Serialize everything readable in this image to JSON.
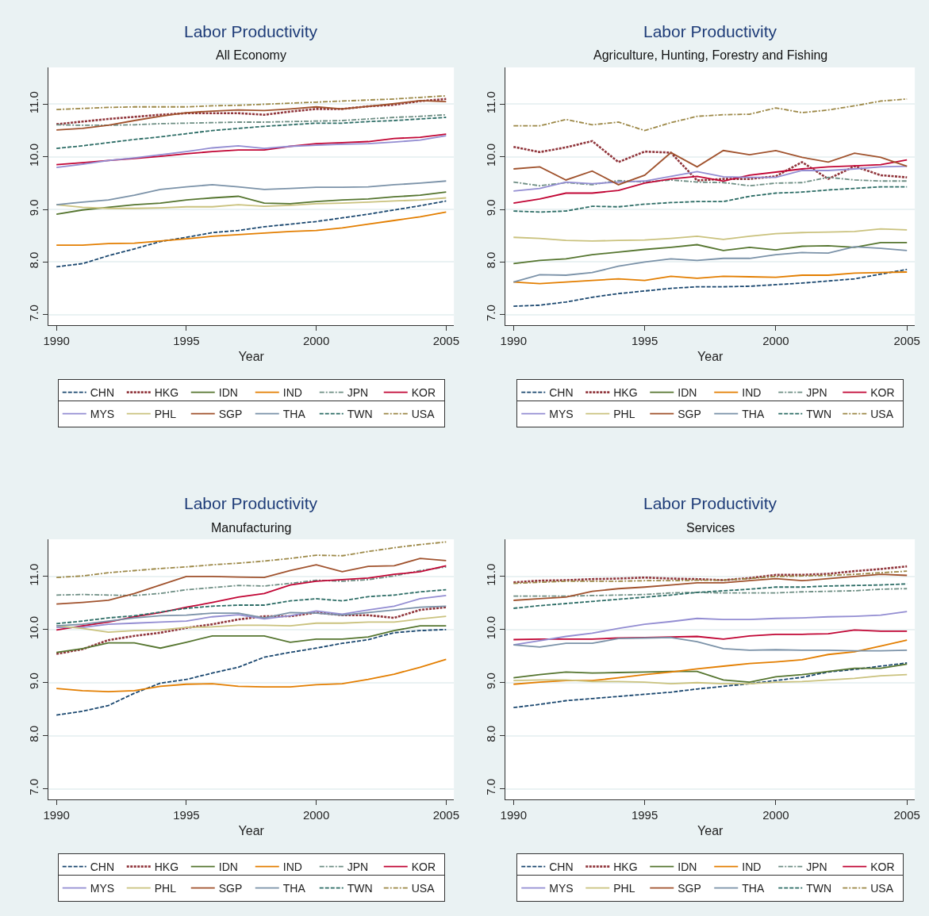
{
  "chart_data": [
    {
      "type": "line",
      "title": "Labor Productivity",
      "subtitle": "All Economy",
      "xlabel": "Year",
      "x": [
        1990,
        1991,
        1992,
        1993,
        1994,
        1995,
        1996,
        1997,
        1998,
        1999,
        2000,
        2001,
        2002,
        2003,
        2004,
        2005
      ],
      "xlim": [
        1989.7,
        2005.3
      ],
      "ylim": [
        6.8,
        11.7
      ],
      "xticks": [
        1990,
        1995,
        2000,
        2005
      ],
      "yticks": [
        {
          "value": 7,
          "label": "7.0"
        },
        {
          "value": 8,
          "label": "8.0"
        },
        {
          "value": 9,
          "label": "9.0"
        },
        {
          "value": 10,
          "label": "10.0"
        },
        {
          "value": 11,
          "label": "11.0"
        }
      ],
      "grid": "y",
      "legend": "bottom",
      "marker": "none",
      "series": [
        {
          "name": "CHN",
          "color": "#1a476f",
          "line_style": "dashed",
          "values": [
            7.91,
            7.97,
            8.12,
            8.25,
            8.39,
            8.47,
            8.56,
            8.6,
            8.67,
            8.72,
            8.77,
            8.84,
            8.91,
            8.99,
            9.07,
            9.16
          ]
        },
        {
          "name": "HKG",
          "color": "#90353b",
          "line_style": "dotted",
          "values": [
            10.62,
            10.67,
            10.72,
            10.76,
            10.8,
            10.83,
            10.83,
            10.83,
            10.8,
            10.86,
            10.91,
            10.91,
            10.96,
            10.99,
            11.06,
            11.1
          ]
        },
        {
          "name": "IDN",
          "color": "#55752f",
          "line_style": "solid",
          "values": [
            8.91,
            8.99,
            9.04,
            9.09,
            9.12,
            9.18,
            9.22,
            9.25,
            9.12,
            9.11,
            9.15,
            9.18,
            9.2,
            9.24,
            9.27,
            9.33
          ]
        },
        {
          "name": "IND",
          "color": "#e37e00",
          "line_style": "solid",
          "values": [
            8.32,
            8.32,
            8.35,
            8.36,
            8.4,
            8.44,
            8.49,
            8.52,
            8.55,
            8.58,
            8.6,
            8.65,
            8.72,
            8.79,
            8.86,
            8.95
          ]
        },
        {
          "name": "JPN",
          "color": "#6e8e84",
          "line_style": "dashdot",
          "values": [
            10.61,
            10.6,
            10.6,
            10.61,
            10.63,
            10.64,
            10.65,
            10.66,
            10.66,
            10.67,
            10.68,
            10.69,
            10.72,
            10.75,
            10.77,
            10.8
          ]
        },
        {
          "name": "KOR",
          "color": "#c10534",
          "line_style": "solid",
          "values": [
            9.85,
            9.89,
            9.93,
            9.97,
            10.01,
            10.06,
            10.1,
            10.13,
            10.13,
            10.2,
            10.25,
            10.27,
            10.29,
            10.35,
            10.37,
            10.43
          ]
        },
        {
          "name": "MYS",
          "color": "#938dd2",
          "line_style": "solid",
          "values": [
            9.8,
            9.86,
            9.93,
            9.98,
            10.04,
            10.1,
            10.17,
            10.21,
            10.16,
            10.2,
            10.22,
            10.24,
            10.25,
            10.28,
            10.32,
            10.4
          ]
        },
        {
          "name": "PHL",
          "color": "#cac27e",
          "line_style": "solid",
          "values": [
            9.09,
            9.04,
            9.02,
            9.02,
            9.03,
            9.05,
            9.05,
            9.09,
            9.06,
            9.08,
            9.11,
            9.12,
            9.14,
            9.16,
            9.18,
            9.22
          ]
        },
        {
          "name": "SGP",
          "color": "#a0522d",
          "line_style": "solid",
          "values": [
            10.51,
            10.54,
            10.6,
            10.69,
            10.77,
            10.84,
            10.87,
            10.89,
            10.88,
            10.91,
            10.95,
            10.91,
            10.96,
            11.01,
            11.07,
            11.05
          ]
        },
        {
          "name": "THA",
          "color": "#7b92a8",
          "line_style": "solid",
          "values": [
            9.09,
            9.14,
            9.18,
            9.27,
            9.38,
            9.43,
            9.47,
            9.43,
            9.38,
            9.4,
            9.42,
            9.42,
            9.43,
            9.47,
            9.5,
            9.54
          ]
        },
        {
          "name": "TWN",
          "color": "#2d6d66",
          "line_style": "dashed",
          "values": [
            10.16,
            10.21,
            10.27,
            10.33,
            10.38,
            10.44,
            10.5,
            10.54,
            10.58,
            10.61,
            10.64,
            10.64,
            10.67,
            10.69,
            10.72,
            10.75
          ]
        },
        {
          "name": "USA",
          "color": "#9c8847",
          "line_style": "dashdot",
          "values": [
            10.9,
            10.92,
            10.94,
            10.95,
            10.95,
            10.95,
            10.97,
            10.98,
            11.0,
            11.02,
            11.04,
            11.06,
            11.08,
            11.1,
            11.13,
            11.16
          ]
        }
      ]
    },
    {
      "type": "line",
      "title": "Labor Productivity",
      "subtitle": "Agriculture, Hunting, Forestry and Fishing",
      "xlabel": "Year",
      "x": [
        1990,
        1991,
        1992,
        1993,
        1994,
        1995,
        1996,
        1997,
        1998,
        1999,
        2000,
        2001,
        2002,
        2003,
        2004,
        2005
      ],
      "xlim": [
        1989.7,
        2005.3
      ],
      "ylim": [
        6.8,
        11.7
      ],
      "xticks": [
        1990,
        1995,
        2000,
        2005
      ],
      "yticks": [
        {
          "value": 7,
          "label": "7.0"
        },
        {
          "value": 8,
          "label": "8.0"
        },
        {
          "value": 9,
          "label": "9.0"
        },
        {
          "value": 10,
          "label": "10.0"
        },
        {
          "value": 11,
          "label": "11.0"
        }
      ],
      "grid": "y",
      "legend": "bottom",
      "marker": "none",
      "series": [
        {
          "name": "CHN",
          "color": "#1a476f",
          "line_style": "dashed",
          "values": [
            7.16,
            7.18,
            7.24,
            7.33,
            7.4,
            7.45,
            7.5,
            7.53,
            7.53,
            7.54,
            7.57,
            7.6,
            7.64,
            7.68,
            7.77,
            7.86
          ]
        },
        {
          "name": "HKG",
          "color": "#90353b",
          "line_style": "dotted",
          "values": [
            10.19,
            10.09,
            10.18,
            10.3,
            9.9,
            10.1,
            10.08,
            9.55,
            9.58,
            9.58,
            9.63,
            9.9,
            9.58,
            9.82,
            9.65,
            9.61
          ]
        },
        {
          "name": "IDN",
          "color": "#55752f",
          "line_style": "solid",
          "values": [
            7.97,
            8.03,
            8.06,
            8.14,
            8.19,
            8.24,
            8.28,
            8.33,
            8.22,
            8.28,
            8.23,
            8.3,
            8.31,
            8.28,
            8.37,
            8.37
          ]
        },
        {
          "name": "IND",
          "color": "#e37e00",
          "line_style": "solid",
          "values": [
            7.62,
            7.59,
            7.62,
            7.65,
            7.68,
            7.65,
            7.73,
            7.69,
            7.73,
            7.72,
            7.71,
            7.75,
            7.75,
            7.79,
            7.8,
            7.81
          ]
        },
        {
          "name": "JPN",
          "color": "#6e8e84",
          "line_style": "dashdot",
          "values": [
            9.52,
            9.45,
            9.51,
            9.47,
            9.55,
            9.52,
            9.56,
            9.52,
            9.51,
            9.45,
            9.5,
            9.51,
            9.61,
            9.56,
            9.54,
            9.54
          ]
        },
        {
          "name": "KOR",
          "color": "#c10534",
          "line_style": "solid",
          "values": [
            9.12,
            9.2,
            9.31,
            9.31,
            9.36,
            9.5,
            9.58,
            9.63,
            9.54,
            9.65,
            9.71,
            9.77,
            9.81,
            9.83,
            9.85,
            9.94
          ]
        },
        {
          "name": "MYS",
          "color": "#938dd2",
          "line_style": "solid",
          "values": [
            9.35,
            9.4,
            9.52,
            9.49,
            9.52,
            9.54,
            9.63,
            9.72,
            9.62,
            9.61,
            9.61,
            9.74,
            9.74,
            9.77,
            9.81,
            9.82
          ]
        },
        {
          "name": "PHL",
          "color": "#cac27e",
          "line_style": "solid",
          "values": [
            8.47,
            8.45,
            8.41,
            8.4,
            8.41,
            8.42,
            8.45,
            8.49,
            8.43,
            8.49,
            8.54,
            8.56,
            8.57,
            8.58,
            8.63,
            8.61
          ]
        },
        {
          "name": "SGP",
          "color": "#a0522d",
          "line_style": "solid",
          "values": [
            9.77,
            9.81,
            9.56,
            9.73,
            9.47,
            9.65,
            10.08,
            9.81,
            10.12,
            10.04,
            10.12,
            9.99,
            9.9,
            10.07,
            9.99,
            9.82
          ]
        },
        {
          "name": "THA",
          "color": "#7b92a8",
          "line_style": "solid",
          "values": [
            7.62,
            7.76,
            7.75,
            7.8,
            7.92,
            8.0,
            8.06,
            8.03,
            8.07,
            8.07,
            8.14,
            8.18,
            8.17,
            8.29,
            8.26,
            8.22
          ]
        },
        {
          "name": "TWN",
          "color": "#2d6d66",
          "line_style": "dashed",
          "values": [
            8.97,
            8.95,
            8.97,
            9.06,
            9.05,
            9.1,
            9.13,
            9.15,
            9.15,
            9.25,
            9.31,
            9.33,
            9.37,
            9.4,
            9.43,
            9.43
          ]
        },
        {
          "name": "USA",
          "color": "#9c8847",
          "line_style": "dashdot",
          "values": [
            10.59,
            10.59,
            10.71,
            10.61,
            10.66,
            10.5,
            10.65,
            10.77,
            10.8,
            10.81,
            10.93,
            10.84,
            10.89,
            10.97,
            11.06,
            11.1
          ]
        }
      ]
    },
    {
      "type": "line",
      "title": "Labor Productivity",
      "subtitle": "Manufacturing",
      "xlabel": "Year",
      "x": [
        1990,
        1991,
        1992,
        1993,
        1994,
        1995,
        1996,
        1997,
        1998,
        1999,
        2000,
        2001,
        2002,
        2003,
        2004,
        2005
      ],
      "xlim": [
        1989.7,
        2005.3
      ],
      "ylim": [
        6.8,
        11.7
      ],
      "xticks": [
        1990,
        1995,
        2000,
        2005
      ],
      "yticks": [
        {
          "value": 7,
          "label": "7.0"
        },
        {
          "value": 8,
          "label": "8.0"
        },
        {
          "value": 9,
          "label": "9.0"
        },
        {
          "value": 10,
          "label": "10.0"
        },
        {
          "value": 11,
          "label": "11.0"
        }
      ],
      "grid": "y",
      "legend": "bottom",
      "marker": "none",
      "series": [
        {
          "name": "CHN",
          "color": "#1a476f",
          "line_style": "dashed",
          "values": [
            8.39,
            8.46,
            8.57,
            8.8,
            8.99,
            9.06,
            9.18,
            9.29,
            9.48,
            9.57,
            9.65,
            9.74,
            9.81,
            9.94,
            9.98,
            10.0
          ]
        },
        {
          "name": "HKG",
          "color": "#90353b",
          "line_style": "dotted",
          "values": [
            9.54,
            9.63,
            9.8,
            9.88,
            9.94,
            10.03,
            10.1,
            10.19,
            10.25,
            10.25,
            10.32,
            10.27,
            10.27,
            10.22,
            10.37,
            10.42
          ]
        },
        {
          "name": "IDN",
          "color": "#55752f",
          "line_style": "solid",
          "values": [
            9.57,
            9.64,
            9.75,
            9.75,
            9.65,
            9.76,
            9.88,
            9.88,
            9.88,
            9.76,
            9.82,
            9.82,
            9.86,
            9.98,
            10.07,
            10.07
          ]
        },
        {
          "name": "IND",
          "color": "#e37e00",
          "line_style": "solid",
          "values": [
            8.89,
            8.85,
            8.83,
            8.85,
            8.93,
            8.97,
            8.98,
            8.93,
            8.92,
            8.92,
            8.96,
            8.98,
            9.06,
            9.16,
            9.29,
            9.44
          ]
        },
        {
          "name": "JPN",
          "color": "#6e8e84",
          "line_style": "dashdot",
          "values": [
            10.65,
            10.66,
            10.65,
            10.64,
            10.68,
            10.75,
            10.79,
            10.83,
            10.82,
            10.87,
            10.93,
            10.91,
            10.94,
            11.01,
            11.11,
            11.18
          ]
        },
        {
          "name": "KOR",
          "color": "#c10534",
          "line_style": "solid",
          "values": [
            9.99,
            10.07,
            10.14,
            10.24,
            10.32,
            10.42,
            10.51,
            10.61,
            10.68,
            10.84,
            10.91,
            10.94,
            10.97,
            11.04,
            11.09,
            11.2
          ]
        },
        {
          "name": "MYS",
          "color": "#938dd2",
          "line_style": "solid",
          "values": [
            10.04,
            10.04,
            10.1,
            10.12,
            10.14,
            10.16,
            10.24,
            10.28,
            10.2,
            10.26,
            10.35,
            10.29,
            10.37,
            10.44,
            10.58,
            10.64
          ]
        },
        {
          "name": "PHL",
          "color": "#cac27e",
          "line_style": "solid",
          "values": [
            10.07,
            10.02,
            9.95,
            9.98,
            9.99,
            10.04,
            10.05,
            10.08,
            10.08,
            10.07,
            10.12,
            10.12,
            10.14,
            10.14,
            10.2,
            10.25
          ]
        },
        {
          "name": "SGP",
          "color": "#a0522d",
          "line_style": "solid",
          "values": [
            10.48,
            10.51,
            10.55,
            10.68,
            10.84,
            11.0,
            11.0,
            10.99,
            10.98,
            11.11,
            11.22,
            11.09,
            11.19,
            11.2,
            11.34,
            11.3
          ]
        },
        {
          "name": "THA",
          "color": "#7b92a8",
          "line_style": "solid",
          "values": [
            10.07,
            10.1,
            10.16,
            10.22,
            10.26,
            10.27,
            10.31,
            10.31,
            10.22,
            10.32,
            10.31,
            10.27,
            10.32,
            10.37,
            10.42,
            10.44
          ]
        },
        {
          "name": "TWN",
          "color": "#2d6d66",
          "line_style": "dashed",
          "values": [
            10.11,
            10.16,
            10.22,
            10.26,
            10.33,
            10.4,
            10.44,
            10.46,
            10.46,
            10.54,
            10.58,
            10.54,
            10.62,
            10.65,
            10.71,
            10.75
          ]
        },
        {
          "name": "USA",
          "color": "#9c8847",
          "line_style": "dashdot",
          "values": [
            10.98,
            11.01,
            11.07,
            11.11,
            11.15,
            11.18,
            11.22,
            11.25,
            11.29,
            11.34,
            11.4,
            11.39,
            11.47,
            11.54,
            11.6,
            11.65
          ]
        }
      ]
    },
    {
      "type": "line",
      "title": "Labor Productivity",
      "subtitle": "Services",
      "xlabel": "Year",
      "x": [
        1990,
        1991,
        1992,
        1993,
        1994,
        1995,
        1996,
        1997,
        1998,
        1999,
        2000,
        2001,
        2002,
        2003,
        2004,
        2005
      ],
      "xlim": [
        1989.7,
        2005.3
      ],
      "ylim": [
        6.8,
        11.7
      ],
      "xticks": [
        1990,
        1995,
        2000,
        2005
      ],
      "yticks": [
        {
          "value": 7,
          "label": "7.0"
        },
        {
          "value": 8,
          "label": "8.0"
        },
        {
          "value": 9,
          "label": "9.0"
        },
        {
          "value": 10,
          "label": "10.0"
        },
        {
          "value": 11,
          "label": "11.0"
        }
      ],
      "grid": "y",
      "legend": "bottom",
      "marker": "none",
      "series": [
        {
          "name": "CHN",
          "color": "#1a476f",
          "line_style": "dashed",
          "values": [
            8.53,
            8.59,
            8.66,
            8.7,
            8.74,
            8.78,
            8.82,
            8.88,
            8.93,
            8.98,
            9.04,
            9.1,
            9.2,
            9.25,
            9.31,
            9.37
          ]
        },
        {
          "name": "HKG",
          "color": "#90353b",
          "line_style": "dotted",
          "values": [
            10.89,
            10.92,
            10.93,
            10.95,
            10.96,
            10.98,
            10.96,
            10.95,
            10.93,
            10.97,
            11.03,
            11.03,
            11.05,
            11.1,
            11.14,
            11.19
          ]
        },
        {
          "name": "IDN",
          "color": "#55752f",
          "line_style": "solid",
          "values": [
            9.09,
            9.15,
            9.2,
            9.18,
            9.19,
            9.2,
            9.21,
            9.21,
            9.05,
            9.01,
            9.11,
            9.15,
            9.21,
            9.27,
            9.27,
            9.35
          ]
        },
        {
          "name": "IND",
          "color": "#e37e00",
          "line_style": "solid",
          "values": [
            8.97,
            9.01,
            9.04,
            9.04,
            9.09,
            9.15,
            9.2,
            9.26,
            9.31,
            9.36,
            9.39,
            9.43,
            9.53,
            9.58,
            9.69,
            9.8
          ]
        },
        {
          "name": "JPN",
          "color": "#6e8e84",
          "line_style": "dashdot",
          "values": [
            10.63,
            10.63,
            10.63,
            10.64,
            10.65,
            10.66,
            10.69,
            10.7,
            10.69,
            10.69,
            10.69,
            10.71,
            10.72,
            10.73,
            10.76,
            10.77
          ]
        },
        {
          "name": "KOR",
          "color": "#c10534",
          "line_style": "solid",
          "values": [
            9.81,
            9.82,
            9.82,
            9.82,
            9.84,
            9.85,
            9.86,
            9.87,
            9.82,
            9.88,
            9.91,
            9.91,
            9.92,
            9.99,
            9.97,
            9.97
          ]
        },
        {
          "name": "MYS",
          "color": "#938dd2",
          "line_style": "solid",
          "values": [
            9.71,
            9.79,
            9.87,
            9.93,
            10.02,
            10.1,
            10.15,
            10.21,
            10.19,
            10.19,
            10.21,
            10.22,
            10.24,
            10.25,
            10.27,
            10.34
          ]
        },
        {
          "name": "PHL",
          "color": "#cac27e",
          "line_style": "solid",
          "values": [
            9.04,
            9.05,
            9.05,
            9.02,
            9.02,
            9.01,
            8.98,
            9.0,
            8.98,
            8.98,
            9.01,
            9.02,
            9.05,
            9.08,
            9.13,
            9.15
          ]
        },
        {
          "name": "SGP",
          "color": "#a0522d",
          "line_style": "solid",
          "values": [
            10.55,
            10.58,
            10.61,
            10.72,
            10.77,
            10.8,
            10.84,
            10.88,
            10.88,
            10.92,
            10.96,
            10.92,
            10.96,
            11.0,
            11.04,
            11.02
          ]
        },
        {
          "name": "THA",
          "color": "#7b92a8",
          "line_style": "solid",
          "values": [
            9.71,
            9.67,
            9.74,
            9.74,
            9.83,
            9.84,
            9.85,
            9.77,
            9.64,
            9.61,
            9.62,
            9.61,
            9.61,
            9.6,
            9.6,
            9.61
          ]
        },
        {
          "name": "TWN",
          "color": "#2d6d66",
          "line_style": "dashed",
          "values": [
            10.4,
            10.45,
            10.49,
            10.53,
            10.57,
            10.61,
            10.65,
            10.7,
            10.73,
            10.76,
            10.8,
            10.8,
            10.82,
            10.83,
            10.84,
            10.86
          ]
        },
        {
          "name": "USA",
          "color": "#9c8847",
          "line_style": "dashdot",
          "values": [
            10.87,
            10.89,
            10.91,
            10.91,
            10.91,
            10.92,
            10.92,
            10.93,
            10.93,
            10.96,
            11.0,
            11.01,
            11.02,
            11.04,
            11.07,
            11.1
          ]
        }
      ]
    }
  ]
}
